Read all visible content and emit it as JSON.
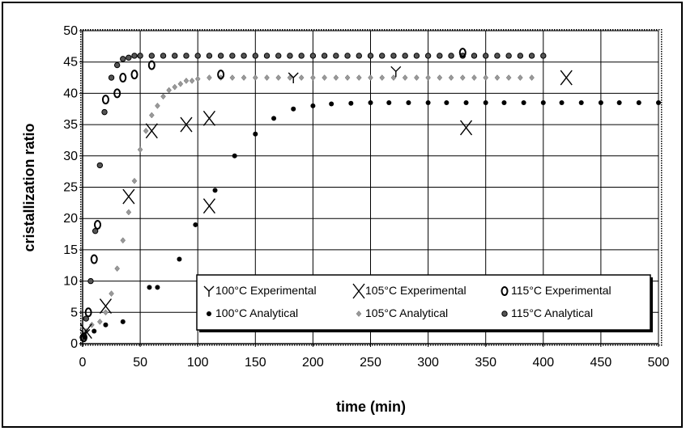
{
  "chart_data": {
    "type": "scatter",
    "title": "",
    "xlabel": "time (min)",
    "ylabel": "cristallization ratio",
    "xlim": [
      0,
      500
    ],
    "ylim": [
      0,
      50
    ],
    "xticks": [
      "0",
      "50",
      "100",
      "150",
      "200",
      "250",
      "300",
      "350",
      "400",
      "450",
      "500"
    ],
    "yticks": [
      "0",
      "5",
      "10",
      "15",
      "20",
      "25",
      "30",
      "35",
      "40",
      "45",
      "50"
    ],
    "grid": true,
    "legend_position": "bottom-right",
    "series": [
      {
        "name": "100°C  Experimental",
        "marker": "y-cross",
        "color": "#000000",
        "points": [
          [
            2,
            1.5
          ],
          [
            183,
            42.5
          ],
          [
            272,
            43.5
          ]
        ]
      },
      {
        "name": "105°C  Experimental",
        "marker": "x",
        "color": "#000000",
        "points": [
          [
            3,
            2
          ],
          [
            20,
            6
          ],
          [
            40,
            23.5
          ],
          [
            60,
            34
          ],
          [
            90,
            35
          ],
          [
            110,
            36
          ],
          [
            110,
            22
          ],
          [
            333,
            34.5
          ],
          [
            420,
            42.5
          ]
        ]
      },
      {
        "name": "115°C  Experimental",
        "marker": "o",
        "color": "#000000",
        "points": [
          [
            1,
            1
          ],
          [
            5,
            5
          ],
          [
            10,
            13.5
          ],
          [
            13,
            19
          ],
          [
            20,
            39
          ],
          [
            30,
            40
          ],
          [
            35,
            42.5
          ],
          [
            45,
            43
          ],
          [
            60,
            44.5
          ],
          [
            120,
            43
          ],
          [
            330,
            46.5
          ]
        ]
      },
      {
        "name": "100°C  Analytical",
        "marker": "dot",
        "color": "#000000",
        "points": [
          [
            2,
            1
          ],
          [
            10,
            2
          ],
          [
            20,
            3
          ],
          [
            35,
            3.5
          ],
          [
            58,
            9
          ],
          [
            65,
            9
          ],
          [
            84,
            13.5
          ],
          [
            98,
            19
          ],
          [
            115,
            24.5
          ],
          [
            132,
            30
          ],
          [
            150,
            33.5
          ],
          [
            166,
            36
          ],
          [
            183,
            37.5
          ],
          [
            200,
            38
          ],
          [
            216,
            38.3
          ],
          [
            233,
            38.4
          ],
          [
            250,
            38.5
          ],
          [
            266,
            38.5
          ],
          [
            283,
            38.5
          ],
          [
            300,
            38.5
          ],
          [
            316,
            38.5
          ],
          [
            333,
            38.5
          ],
          [
            350,
            38.5
          ],
          [
            366,
            38.5
          ],
          [
            383,
            38.5
          ],
          [
            400,
            38.5
          ],
          [
            416,
            38.5
          ],
          [
            433,
            38.5
          ],
          [
            450,
            38.5
          ],
          [
            466,
            38.5
          ],
          [
            483,
            38.5
          ],
          [
            500,
            38.5
          ]
        ]
      },
      {
        "name": "105°C  Analytical",
        "marker": "diamond",
        "color": "#999999",
        "points": [
          [
            3,
            2
          ],
          [
            8,
            3
          ],
          [
            15,
            3.5
          ],
          [
            20,
            5
          ],
          [
            25,
            8
          ],
          [
            30,
            12
          ],
          [
            35,
            16.5
          ],
          [
            40,
            21
          ],
          [
            45,
            26
          ],
          [
            50,
            31
          ],
          [
            55,
            34
          ],
          [
            60,
            36.5
          ],
          [
            65,
            38
          ],
          [
            70,
            39.5
          ],
          [
            75,
            40.5
          ],
          [
            80,
            41
          ],
          [
            85,
            41.5
          ],
          [
            90,
            42
          ],
          [
            95,
            42
          ],
          [
            100,
            42.3
          ],
          [
            110,
            42.5
          ],
          [
            120,
            42.5
          ],
          [
            130,
            42.5
          ],
          [
            140,
            42.5
          ],
          [
            150,
            42.5
          ],
          [
            160,
            42.5
          ],
          [
            170,
            42.5
          ],
          [
            180,
            42.5
          ],
          [
            190,
            42.5
          ],
          [
            200,
            42.5
          ],
          [
            210,
            42.5
          ],
          [
            220,
            42.5
          ],
          [
            230,
            42.5
          ],
          [
            240,
            42.5
          ],
          [
            250,
            42.5
          ],
          [
            260,
            42.5
          ],
          [
            270,
            42.5
          ],
          [
            280,
            42.5
          ],
          [
            290,
            42.5
          ],
          [
            300,
            42.5
          ],
          [
            310,
            42.5
          ],
          [
            320,
            42.5
          ],
          [
            330,
            42.5
          ],
          [
            340,
            42.5
          ],
          [
            350,
            42.5
          ],
          [
            360,
            42.5
          ],
          [
            370,
            42.5
          ],
          [
            380,
            42.5
          ],
          [
            390,
            42.5
          ]
        ]
      },
      {
        "name": "115°C  Analytical",
        "marker": "dot-ring",
        "color": "#000000",
        "points": [
          [
            0,
            1
          ],
          [
            3,
            4
          ],
          [
            7,
            10
          ],
          [
            11,
            18
          ],
          [
            15,
            28.5
          ],
          [
            19,
            37
          ],
          [
            25,
            42.5
          ],
          [
            30,
            44.5
          ],
          [
            35,
            45.5
          ],
          [
            40,
            45.7
          ],
          [
            45,
            46
          ],
          [
            50,
            46
          ],
          [
            60,
            46
          ],
          [
            70,
            46
          ],
          [
            80,
            46
          ],
          [
            90,
            46
          ],
          [
            100,
            46
          ],
          [
            110,
            46
          ],
          [
            120,
            46
          ],
          [
            130,
            46
          ],
          [
            140,
            46
          ],
          [
            150,
            46
          ],
          [
            160,
            46
          ],
          [
            170,
            46
          ],
          [
            180,
            46
          ],
          [
            190,
            46
          ],
          [
            200,
            46
          ],
          [
            210,
            46
          ],
          [
            220,
            46
          ],
          [
            230,
            46
          ],
          [
            240,
            46
          ],
          [
            250,
            46
          ],
          [
            260,
            46
          ],
          [
            270,
            46
          ],
          [
            280,
            46
          ],
          [
            290,
            46
          ],
          [
            300,
            46
          ],
          [
            310,
            46
          ],
          [
            320,
            46
          ],
          [
            330,
            46
          ],
          [
            340,
            46
          ],
          [
            350,
            46
          ],
          [
            360,
            46
          ],
          [
            370,
            46
          ],
          [
            380,
            46
          ],
          [
            390,
            46
          ],
          [
            400,
            46
          ]
        ]
      }
    ]
  }
}
